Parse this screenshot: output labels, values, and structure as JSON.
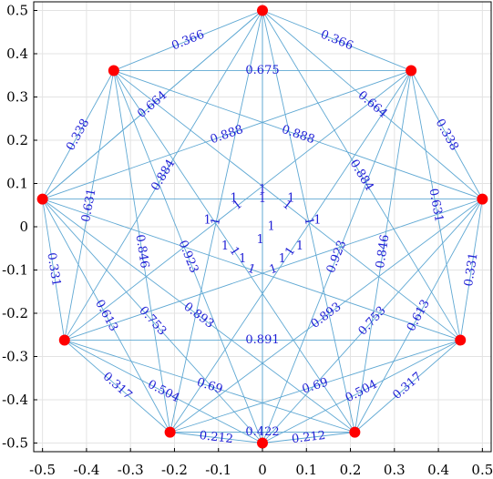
{
  "chart_data": {
    "type": "scatter",
    "title": "",
    "xlabel": "",
    "ylabel": "",
    "xlim": [
      -0.52,
      0.52
    ],
    "ylim": [
      -0.52,
      0.52
    ],
    "x_ticks": [
      "-0.5",
      "-0.4",
      "-0.3",
      "-0.2",
      "-0.1",
      "0",
      "0.1",
      "0.2",
      "0.3",
      "0.4",
      "0.5"
    ],
    "y_ticks": [
      "-0.5",
      "-0.4",
      "-0.3",
      "-0.2",
      "-0.1",
      "0",
      "0.1",
      "0.2",
      "0.3",
      "0.4",
      "0.5"
    ],
    "grid": true,
    "colors": {
      "node": "#ff0000",
      "edge": "#5fa8d3",
      "label": "#1f1fd6",
      "grid": "#e3e3e3"
    },
    "nodes": [
      {
        "x": 0.0,
        "y": 0.5
      },
      {
        "x": 0.338,
        "y": 0.361
      },
      {
        "x": 0.5,
        "y": 0.064
      },
      {
        "x": 0.45,
        "y": -0.262
      },
      {
        "x": 0.21,
        "y": -0.475
      },
      {
        "x": 0.0,
        "y": -0.5
      },
      {
        "x": -0.21,
        "y": -0.475
      },
      {
        "x": -0.45,
        "y": -0.262
      },
      {
        "x": -0.5,
        "y": 0.064
      },
      {
        "x": -0.338,
        "y": 0.361
      }
    ],
    "edges": [
      {
        "from": 0,
        "to": 1,
        "label": "0.366"
      },
      {
        "from": 0,
        "to": 9,
        "label": "0.366"
      },
      {
        "from": 1,
        "to": 2,
        "label": "0.338"
      },
      {
        "from": 8,
        "to": 9,
        "label": "0.338"
      },
      {
        "from": 2,
        "to": 3,
        "label": "0.331"
      },
      {
        "from": 7,
        "to": 8,
        "label": "0.331"
      },
      {
        "from": 3,
        "to": 4,
        "label": "0.317"
      },
      {
        "from": 6,
        "to": 7,
        "label": "0.317"
      },
      {
        "from": 4,
        "to": 5,
        "label": "0.212"
      },
      {
        "from": 5,
        "to": 6,
        "label": "0.212"
      },
      {
        "from": 1,
        "to": 9,
        "label": "0.675"
      },
      {
        "from": 3,
        "to": 7,
        "label": "0.891"
      },
      {
        "from": 4,
        "to": 6,
        "label": "0.422"
      },
      {
        "from": 0,
        "to": 2,
        "label": "0.664"
      },
      {
        "from": 0,
        "to": 8,
        "label": "0.664"
      },
      {
        "from": 1,
        "to": 8,
        "label": "0.888"
      },
      {
        "from": 2,
        "to": 9,
        "label": "0.888"
      },
      {
        "from": 0,
        "to": 3,
        "label": "0.884"
      },
      {
        "from": 0,
        "to": 7,
        "label": "0.884"
      },
      {
        "from": 1,
        "to": 3,
        "label": "0.631"
      },
      {
        "from": 7,
        "to": 9,
        "label": "0.631"
      },
      {
        "from": 2,
        "to": 4,
        "label": "0.613"
      },
      {
        "from": 6,
        "to": 8,
        "label": "0.613"
      },
      {
        "from": 1,
        "to": 4,
        "label": "0.846"
      },
      {
        "from": 6,
        "to": 9,
        "label": "0.846"
      },
      {
        "from": 2,
        "to": 5,
        "label": "0.753"
      },
      {
        "from": 5,
        "to": 8,
        "label": "0.753"
      },
      {
        "from": 3,
        "to": 5,
        "label": "0.504"
      },
      {
        "from": 5,
        "to": 7,
        "label": "0.504"
      },
      {
        "from": 2,
        "to": 6,
        "label": "0.893"
      },
      {
        "from": 4,
        "to": 8,
        "label": "0.893"
      },
      {
        "from": 3,
        "to": 6,
        "label": "0.69"
      },
      {
        "from": 4,
        "to": 7,
        "label": "0.69"
      },
      {
        "from": 1,
        "to": 5,
        "label": "0.923"
      },
      {
        "from": 5,
        "to": 9,
        "label": "0.923"
      },
      {
        "from": 0,
        "to": 5,
        "label": ""
      },
      {
        "from": 1,
        "to": 6,
        "label": "1"
      },
      {
        "from": 1,
        "to": 7,
        "label": "1"
      },
      {
        "from": 2,
        "to": 7,
        "label": "1"
      },
      {
        "from": 2,
        "to": 8,
        "label": "1"
      },
      {
        "from": 3,
        "to": 8,
        "label": "1"
      },
      {
        "from": 3,
        "to": 9,
        "label": "1"
      },
      {
        "from": 4,
        "to": 9,
        "label": "1"
      },
      {
        "from": 6,
        "to": 0,
        "label": "1"
      },
      {
        "from": 4,
        "to": 0,
        "label": "1"
      },
      {
        "from": 0,
        "to": 8,
        "label": ""
      },
      {
        "from": 5,
        "to": 0,
        "label": ""
      }
    ],
    "center_labels": [
      {
        "x": 0.0,
        "y": 0.085,
        "label": "1"
      },
      {
        "x": -0.065,
        "y": 0.065,
        "label": "1"
      },
      {
        "x": 0.065,
        "y": 0.065,
        "label": "1"
      },
      {
        "x": -0.125,
        "y": 0.015,
        "label": "1"
      },
      {
        "x": 0.125,
        "y": 0.015,
        "label": "1"
      },
      {
        "x": 0.02,
        "y": 0.0,
        "label": "1"
      },
      {
        "x": -0.045,
        "y": -0.075,
        "label": "1"
      },
      {
        "x": 0.045,
        "y": -0.075,
        "label": "1"
      },
      {
        "x": -0.005,
        "y": -0.03,
        "label": "1"
      },
      {
        "x": -0.085,
        "y": -0.045,
        "label": "1"
      },
      {
        "x": 0.085,
        "y": -0.045,
        "label": "1"
      }
    ]
  }
}
